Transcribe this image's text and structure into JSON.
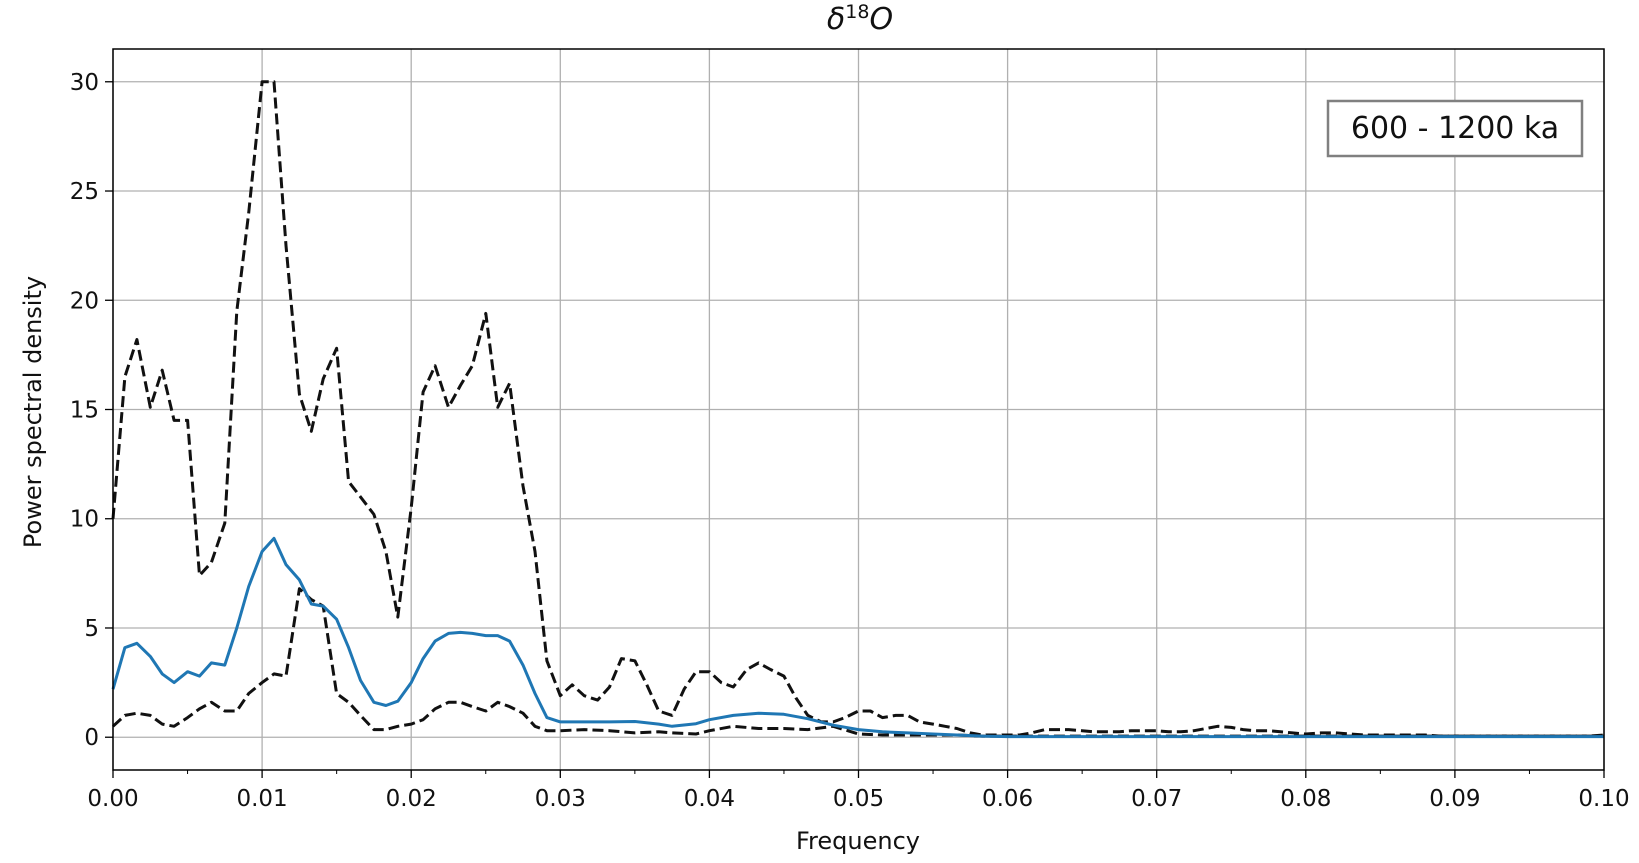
{
  "chart_data": {
    "type": "line",
    "title": {
      "main": "δ",
      "sup": "18",
      "tail": "O"
    },
    "xlabel": "Frequency",
    "ylabel": "Power spectral density",
    "xlim": [
      0.0,
      0.1
    ],
    "ylim": [
      -1.5,
      31.5
    ],
    "xticks": [
      0.0,
      0.01,
      0.02,
      0.03,
      0.04,
      0.05,
      0.06,
      0.07,
      0.08,
      0.09,
      0.1
    ],
    "xtick_labels": [
      "0.00",
      "0.01",
      "0.02",
      "0.03",
      "0.04",
      "0.05",
      "0.06",
      "0.07",
      "0.08",
      "0.09",
      "0.10"
    ],
    "yticks": [
      0,
      5,
      10,
      15,
      20,
      25,
      30
    ],
    "ytick_labels": [
      "0",
      "5",
      "10",
      "15",
      "20",
      "25",
      "30"
    ],
    "grid": true,
    "annotation": "600 - 1200 ka",
    "annotation_location": "top-right",
    "series": [
      {
        "role": "upper",
        "color": "#111111",
        "style": "dashed",
        "x": [
          0.0,
          0.0008,
          0.0016,
          0.0025,
          0.0033,
          0.0041,
          0.005,
          0.0058,
          0.0066,
          0.0075,
          0.0083,
          0.0091,
          0.01,
          0.0108,
          0.0116,
          0.0125,
          0.0133,
          0.0141,
          0.015,
          0.0158,
          0.0166,
          0.0175,
          0.0183,
          0.0191,
          0.02,
          0.0208,
          0.0216,
          0.0225,
          0.0233,
          0.0241,
          0.025,
          0.0258,
          0.0266,
          0.0275,
          0.0283,
          0.0291,
          0.03,
          0.0308,
          0.0316,
          0.0325,
          0.0333,
          0.0341,
          0.035,
          0.0358,
          0.0366,
          0.0375,
          0.0383,
          0.0391,
          0.04,
          0.0408,
          0.0416,
          0.0425,
          0.0433,
          0.0441,
          0.045,
          0.0458,
          0.0466,
          0.0475,
          0.0483,
          0.0491,
          0.05,
          0.0508,
          0.0516,
          0.0525,
          0.0533,
          0.0541,
          0.055,
          0.0558,
          0.0566,
          0.0575,
          0.0583,
          0.0591,
          0.06,
          0.0608,
          0.0616,
          0.0625,
          0.0633,
          0.0641,
          0.065,
          0.0658,
          0.0666,
          0.0675,
          0.0683,
          0.0691,
          0.07,
          0.0708,
          0.0716,
          0.0725,
          0.0733,
          0.0741,
          0.075,
          0.0758,
          0.0766,
          0.0775,
          0.0783,
          0.0791,
          0.08,
          0.081,
          0.082,
          0.083,
          0.084,
          0.085,
          0.086,
          0.087,
          0.088,
          0.089,
          0.09,
          0.091,
          0.092,
          0.093,
          0.094,
          0.095,
          0.096,
          0.097,
          0.098,
          0.099,
          0.1
        ],
        "y": [
          10.0,
          16.5,
          18.2,
          15.1,
          16.8,
          14.5,
          14.5,
          7.4,
          8.0,
          9.8,
          19.5,
          24.0,
          30.0,
          30.0,
          22.5,
          15.7,
          14.0,
          16.4,
          17.8,
          11.7,
          11.0,
          10.2,
          8.5,
          5.5,
          10.5,
          15.8,
          17.0,
          15.1,
          16.1,
          17.0,
          19.4,
          15.1,
          16.2,
          11.5,
          8.5,
          3.5,
          1.9,
          2.4,
          1.9,
          1.7,
          2.3,
          3.6,
          3.5,
          2.4,
          1.2,
          1.0,
          2.2,
          3.0,
          3.0,
          2.5,
          2.3,
          3.1,
          3.4,
          3.1,
          2.8,
          1.8,
          1.0,
          0.7,
          0.7,
          0.9,
          1.2,
          1.2,
          0.9,
          1.0,
          1.0,
          0.7,
          0.6,
          0.5,
          0.4,
          0.2,
          0.1,
          0.1,
          0.1,
          0.1,
          0.2,
          0.35,
          0.35,
          0.35,
          0.3,
          0.25,
          0.25,
          0.25,
          0.3,
          0.3,
          0.3,
          0.25,
          0.25,
          0.3,
          0.4,
          0.5,
          0.45,
          0.35,
          0.3,
          0.3,
          0.25,
          0.2,
          0.15,
          0.2,
          0.2,
          0.15,
          0.1,
          0.1,
          0.1,
          0.1,
          0.1,
          0.05,
          0.05,
          0.05,
          0.05,
          0.05,
          0.05,
          0.05,
          0.05,
          0.05,
          0.05,
          0.05,
          0.1
        ]
      },
      {
        "role": "estimate",
        "color": "#1f77b4",
        "style": "solid",
        "x": [
          0.0,
          0.0008,
          0.0016,
          0.0025,
          0.0033,
          0.0041,
          0.005,
          0.0058,
          0.0066,
          0.0075,
          0.0083,
          0.0091,
          0.01,
          0.0108,
          0.0116,
          0.0125,
          0.0133,
          0.0141,
          0.015,
          0.0158,
          0.0166,
          0.0175,
          0.0183,
          0.0191,
          0.02,
          0.0208,
          0.0216,
          0.0225,
          0.0233,
          0.0241,
          0.025,
          0.0258,
          0.0266,
          0.0275,
          0.0283,
          0.0291,
          0.03,
          0.0316,
          0.0333,
          0.035,
          0.0366,
          0.0375,
          0.0391,
          0.04,
          0.0416,
          0.0433,
          0.045,
          0.0466,
          0.0483,
          0.05,
          0.0516,
          0.0533,
          0.055,
          0.0566,
          0.0583,
          0.06,
          0.065,
          0.07,
          0.075,
          0.08,
          0.085,
          0.09,
          0.095,
          0.1
        ],
        "y": [
          2.2,
          4.1,
          4.3,
          3.7,
          2.9,
          2.5,
          3.0,
          2.8,
          3.4,
          3.3,
          5.0,
          6.9,
          8.5,
          9.1,
          7.9,
          7.2,
          6.1,
          6.0,
          5.4,
          4.1,
          2.6,
          1.6,
          1.45,
          1.65,
          2.5,
          3.6,
          4.4,
          4.75,
          4.8,
          4.75,
          4.65,
          4.65,
          4.4,
          3.3,
          2.0,
          0.9,
          0.7,
          0.7,
          0.7,
          0.72,
          0.6,
          0.5,
          0.62,
          0.8,
          1.0,
          1.1,
          1.05,
          0.85,
          0.55,
          0.35,
          0.25,
          0.2,
          0.15,
          0.1,
          0.05,
          0.03,
          0.03,
          0.03,
          0.03,
          0.03,
          0.03,
          0.03,
          0.03,
          0.03
        ]
      },
      {
        "role": "lower",
        "color": "#111111",
        "style": "dashed",
        "x": [
          0.0,
          0.0008,
          0.0016,
          0.0025,
          0.0033,
          0.0041,
          0.005,
          0.0058,
          0.0066,
          0.0075,
          0.0083,
          0.0091,
          0.01,
          0.0108,
          0.0116,
          0.0125,
          0.0133,
          0.0141,
          0.015,
          0.0158,
          0.0166,
          0.0175,
          0.0183,
          0.0191,
          0.02,
          0.0208,
          0.0216,
          0.0225,
          0.0233,
          0.0241,
          0.025,
          0.0258,
          0.0266,
          0.0275,
          0.0283,
          0.0291,
          0.03,
          0.0316,
          0.0333,
          0.035,
          0.0366,
          0.0375,
          0.0391,
          0.04,
          0.0416,
          0.0433,
          0.045,
          0.0466,
          0.0483,
          0.05,
          0.0516,
          0.0533,
          0.055,
          0.0566,
          0.0583,
          0.06,
          0.065,
          0.07,
          0.075,
          0.08,
          0.085,
          0.09,
          0.095,
          0.1
        ],
        "y": [
          0.5,
          1.0,
          1.1,
          1.0,
          0.6,
          0.5,
          0.9,
          1.3,
          1.6,
          1.2,
          1.2,
          2.0,
          2.5,
          2.9,
          2.8,
          6.8,
          6.3,
          6.0,
          2.0,
          1.6,
          1.0,
          0.35,
          0.35,
          0.5,
          0.6,
          0.8,
          1.3,
          1.6,
          1.6,
          1.4,
          1.2,
          1.6,
          1.4,
          1.1,
          0.5,
          0.3,
          0.3,
          0.35,
          0.3,
          0.2,
          0.25,
          0.2,
          0.15,
          0.3,
          0.5,
          0.4,
          0.4,
          0.35,
          0.5,
          0.15,
          0.1,
          0.1,
          0.1,
          0.1,
          0.05,
          0.05,
          0.05,
          0.05,
          0.05,
          0.05,
          0.05,
          0.05,
          0.05,
          0.05
        ]
      }
    ]
  }
}
